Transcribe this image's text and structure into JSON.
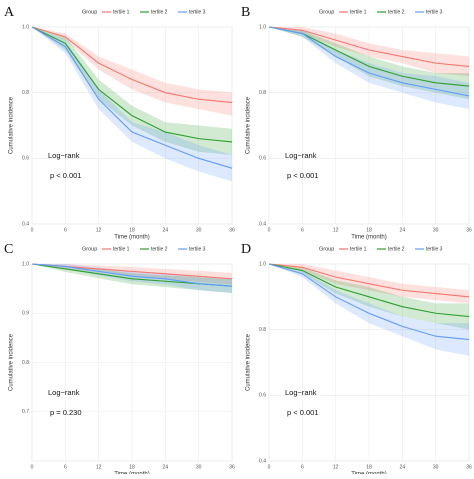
{
  "chart_data": [
    {
      "type": "line",
      "panel_label": "A",
      "legend_title": "Group",
      "xlabel": "Time (month)",
      "ylabel": "Cumulative incidence",
      "annotations": [
        "Log−rank",
        "p < 0.001"
      ],
      "x": [
        0,
        6,
        12,
        18,
        24,
        30,
        36
      ],
      "xlim": [
        0,
        36
      ],
      "xticks": [
        0,
        6,
        12,
        18,
        24,
        30,
        36
      ],
      "ylim": [
        0.4,
        1.0
      ],
      "yticks": [
        0.4,
        0.6,
        0.8,
        {
          "value": 1,
          "label": "1.0"
        }
      ],
      "grid": true,
      "series": [
        {
          "name": "tertile 1",
          "color": "#f8766d",
          "values": [
            1,
            0.97,
            0.89,
            0.84,
            0.8,
            0.78,
            0.77
          ],
          "lower": [
            1,
            0.96,
            0.87,
            0.81,
            0.77,
            0.75,
            0.73
          ],
          "upper": [
            1,
            0.98,
            0.91,
            0.87,
            0.83,
            0.81,
            0.8
          ]
        },
        {
          "name": "tertile 2",
          "color": "#2ca02c",
          "values": [
            1,
            0.95,
            0.81,
            0.73,
            0.68,
            0.66,
            0.65
          ],
          "lower": [
            1,
            0.93,
            0.78,
            0.7,
            0.65,
            0.62,
            0.61
          ],
          "upper": [
            1,
            0.97,
            0.84,
            0.76,
            0.71,
            0.7,
            0.69
          ]
        },
        {
          "name": "tertile 3",
          "color": "#619cff",
          "values": [
            1,
            0.94,
            0.78,
            0.68,
            0.64,
            0.6,
            0.57
          ],
          "lower": [
            1,
            0.92,
            0.75,
            0.65,
            0.6,
            0.56,
            0.53
          ],
          "upper": [
            1,
            0.96,
            0.81,
            0.71,
            0.68,
            0.64,
            0.61
          ]
        }
      ]
    },
    {
      "type": "line",
      "panel_label": "B",
      "legend_title": "Group",
      "xlabel": "Time (month)",
      "ylabel": "Cumulative incidence",
      "annotations": [
        "Log−rank",
        "p < 0.001"
      ],
      "x": [
        0,
        6,
        12,
        18,
        24,
        30,
        36
      ],
      "xlim": [
        0,
        36
      ],
      "xticks": [
        0,
        6,
        12,
        18,
        24,
        30,
        36
      ],
      "ylim": [
        0.4,
        1.0
      ],
      "yticks": [
        0.4,
        0.6,
        0.8,
        {
          "value": 1,
          "label": "1.0"
        }
      ],
      "grid": true,
      "series": [
        {
          "name": "tertile 1",
          "color": "#f8766d",
          "values": [
            1,
            0.99,
            0.96,
            0.93,
            0.91,
            0.89,
            0.88
          ],
          "lower": [
            1,
            0.98,
            0.94,
            0.91,
            0.89,
            0.86,
            0.85
          ],
          "upper": [
            1,
            1,
            0.98,
            0.95,
            0.93,
            0.92,
            0.91
          ]
        },
        {
          "name": "tertile 2",
          "color": "#2ca02c",
          "values": [
            1,
            0.98,
            0.93,
            0.88,
            0.85,
            0.83,
            0.82
          ],
          "lower": [
            1,
            0.97,
            0.91,
            0.85,
            0.82,
            0.8,
            0.78
          ],
          "upper": [
            1,
            0.99,
            0.95,
            0.91,
            0.88,
            0.86,
            0.86
          ]
        },
        {
          "name": "tertile 3",
          "color": "#619cff",
          "values": [
            1,
            0.98,
            0.91,
            0.86,
            0.83,
            0.81,
            0.79
          ],
          "lower": [
            1,
            0.97,
            0.89,
            0.83,
            0.8,
            0.77,
            0.75
          ],
          "upper": [
            1,
            0.99,
            0.93,
            0.89,
            0.86,
            0.85,
            0.83
          ]
        }
      ]
    },
    {
      "type": "line",
      "panel_label": "C",
      "legend_title": "Group",
      "xlabel": "Time (month)",
      "ylabel": "Cumulative incidence",
      "annotations": [
        "Log−rank",
        "p = 0.230"
      ],
      "x": [
        0,
        6,
        12,
        18,
        24,
        30,
        36
      ],
      "xlim": [
        0,
        36
      ],
      "xticks": [
        0,
        6,
        12,
        18,
        24,
        30,
        36
      ],
      "ylim": [
        0.6,
        1.0
      ],
      "yticks": [
        0.7,
        0.8,
        0.9,
        {
          "value": 1,
          "label": "1.0"
        }
      ],
      "grid": true,
      "series": [
        {
          "name": "tertile 1",
          "color": "#f8766d",
          "values": [
            1,
            0.995,
            0.99,
            0.985,
            0.98,
            0.975,
            0.97
          ],
          "lower": [
            1,
            0.99,
            0.983,
            0.976,
            0.97,
            0.964,
            0.958
          ],
          "upper": [
            1,
            1,
            0.997,
            0.994,
            0.99,
            0.986,
            0.982
          ]
        },
        {
          "name": "tertile 2",
          "color": "#2ca02c",
          "values": [
            1,
            0.99,
            0.98,
            0.97,
            0.965,
            0.96,
            0.955
          ],
          "lower": [
            1,
            0.984,
            0.971,
            0.959,
            0.953,
            0.947,
            0.941
          ],
          "upper": [
            1,
            0.996,
            0.989,
            0.981,
            0.977,
            0.973,
            0.969
          ]
        },
        {
          "name": "tertile 3",
          "color": "#619cff",
          "values": [
            1,
            0.995,
            0.985,
            0.975,
            0.97,
            0.96,
            0.955
          ],
          "lower": [
            1,
            0.99,
            0.977,
            0.965,
            0.958,
            0.947,
            0.941
          ],
          "upper": [
            1,
            1,
            0.993,
            0.985,
            0.982,
            0.973,
            0.969
          ]
        }
      ]
    },
    {
      "type": "line",
      "panel_label": "D",
      "legend_title": "Group",
      "xlabel": "Time (month)",
      "ylabel": "Cumulative incidence",
      "annotations": [
        "Log−rank",
        "p < 0.001"
      ],
      "x": [
        0,
        6,
        12,
        18,
        24,
        30,
        36
      ],
      "xlim": [
        0,
        36
      ],
      "xticks": [
        0,
        6,
        12,
        18,
        24,
        30,
        36
      ],
      "ylim": [
        0.4,
        1.0
      ],
      "yticks": [
        0.4,
        0.6,
        0.8,
        {
          "value": 1,
          "label": "1.0"
        }
      ],
      "grid": true,
      "series": [
        {
          "name": "tertile 1",
          "color": "#f8766d",
          "values": [
            1,
            0.99,
            0.96,
            0.94,
            0.92,
            0.91,
            0.9
          ],
          "lower": [
            1,
            0.98,
            0.94,
            0.92,
            0.9,
            0.89,
            0.88
          ],
          "upper": [
            1,
            1,
            0.98,
            0.96,
            0.94,
            0.93,
            0.92
          ]
        },
        {
          "name": "tertile 2",
          "color": "#2ca02c",
          "values": [
            1,
            0.98,
            0.93,
            0.9,
            0.87,
            0.85,
            0.84
          ],
          "lower": [
            1,
            0.97,
            0.91,
            0.87,
            0.84,
            0.82,
            0.8
          ],
          "upper": [
            1,
            0.99,
            0.95,
            0.93,
            0.9,
            0.88,
            0.88
          ]
        },
        {
          "name": "tertile 3",
          "color": "#619cff",
          "values": [
            1,
            0.97,
            0.9,
            0.85,
            0.81,
            0.78,
            0.77
          ],
          "lower": [
            1,
            0.96,
            0.88,
            0.82,
            0.78,
            0.74,
            0.72
          ],
          "upper": [
            1,
            0.98,
            0.92,
            0.88,
            0.84,
            0.82,
            0.82
          ]
        }
      ]
    }
  ]
}
